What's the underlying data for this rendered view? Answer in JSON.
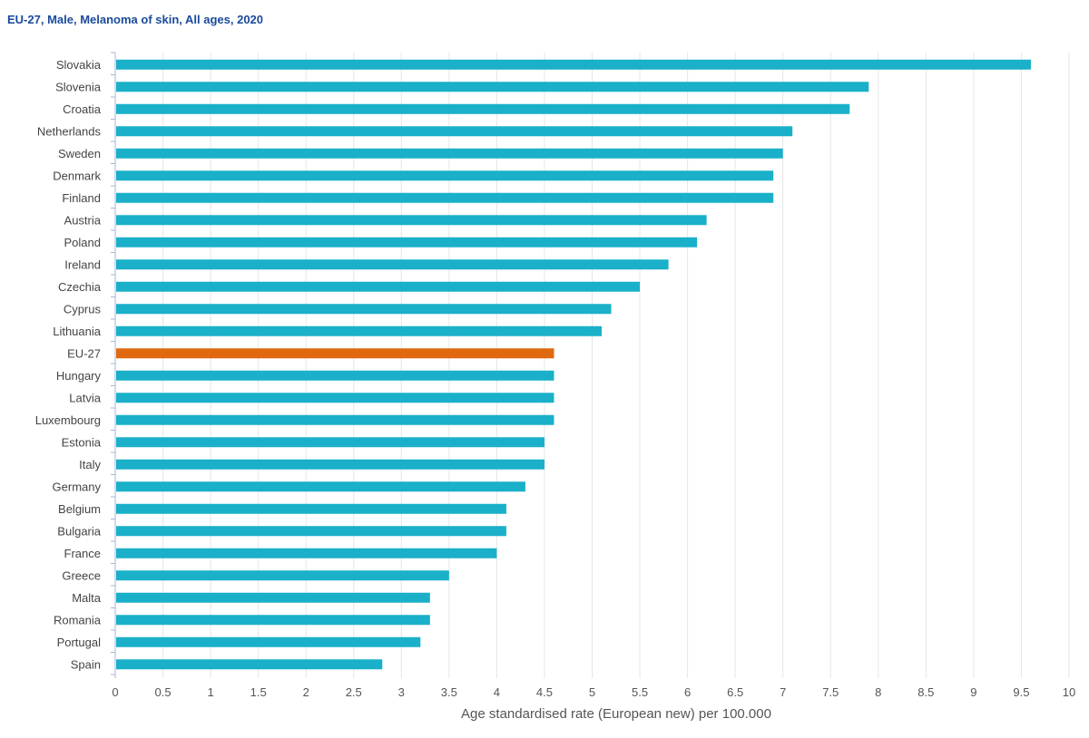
{
  "chart_data": {
    "type": "bar",
    "orientation": "horizontal",
    "title": "EU-27, Male, Melanoma of skin, All ages, 2020",
    "xlabel": "Age standardised rate (European new) per 100.000",
    "ylabel": "",
    "xlim": [
      0,
      10
    ],
    "xticks": [
      "0",
      "0.5",
      "1",
      "1.5",
      "2",
      "2.5",
      "3",
      "3.5",
      "4",
      "4.5",
      "5",
      "5.5",
      "6",
      "6.5",
      "7",
      "7.5",
      "8",
      "8.5",
      "9",
      "9.5",
      "10"
    ],
    "grid": "vertical",
    "categories": [
      "Slovakia",
      "Slovenia",
      "Croatia",
      "Netherlands",
      "Sweden",
      "Denmark",
      "Finland",
      "Austria",
      "Poland",
      "Ireland",
      "Czechia",
      "Cyprus",
      "Lithuania",
      "EU-27",
      "Hungary",
      "Latvia",
      "Luxembourg",
      "Estonia",
      "Italy",
      "Germany",
      "Belgium",
      "Bulgaria",
      "France",
      "Greece",
      "Malta",
      "Romania",
      "Portugal",
      "Spain"
    ],
    "values": [
      9.6,
      7.9,
      7.7,
      7.1,
      7.0,
      6.9,
      6.9,
      6.2,
      6.1,
      5.8,
      5.5,
      5.2,
      5.1,
      4.6,
      4.6,
      4.6,
      4.6,
      4.5,
      4.5,
      4.3,
      4.1,
      4.1,
      4.0,
      3.5,
      3.3,
      3.3,
      3.2,
      2.8
    ],
    "highlight": "EU-27",
    "colors": {
      "bar": "#1ab0c9",
      "highlight": "#e0680f",
      "grid": "#e6e6e6",
      "tick": "#aab4d9"
    }
  }
}
